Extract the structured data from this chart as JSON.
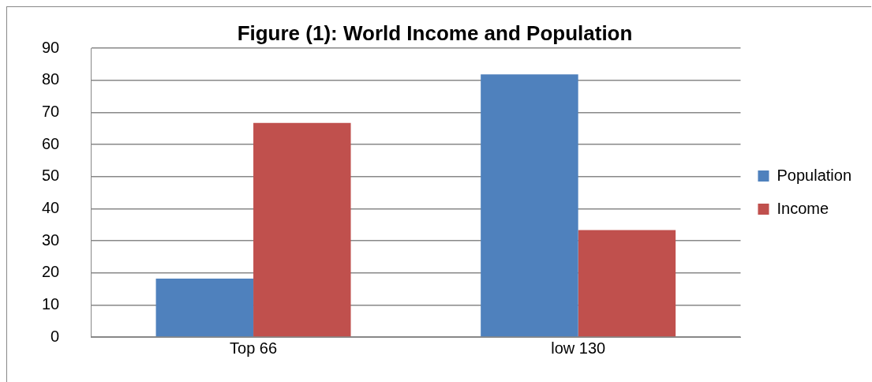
{
  "chart_data": {
    "type": "bar",
    "title": "Figure (1): World Income and Population",
    "categories": [
      "Top 66",
      "low 130"
    ],
    "series": [
      {
        "name": "Population",
        "color": "#4f81bd",
        "values": [
          18.2,
          81.8
        ]
      },
      {
        "name": "Income",
        "color": "#c0504d",
        "values": [
          66.7,
          33.3
        ]
      }
    ],
    "ylim": [
      0,
      90
    ],
    "yticks": [
      0,
      10,
      20,
      30,
      40,
      50,
      60,
      70,
      80,
      90
    ],
    "grid": "y",
    "legend": "right"
  }
}
